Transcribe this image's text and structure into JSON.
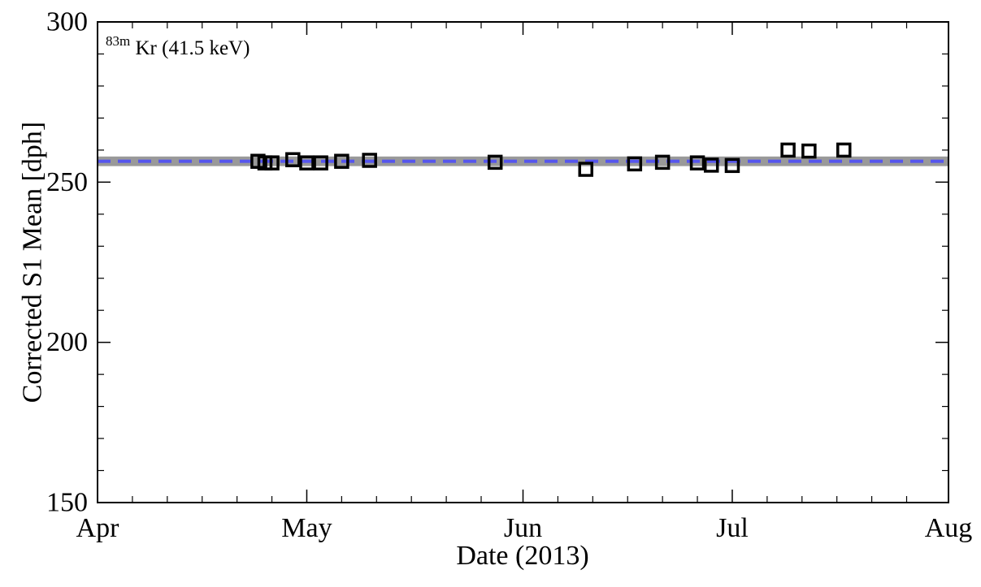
{
  "chart_data": {
    "type": "scatter",
    "title": "",
    "xlabel": "Date (2013)",
    "ylabel": "Corrected S1 Mean [dph]",
    "x_range": [
      "2013-04-01",
      "2013-08-01"
    ],
    "x_ticks": [
      {
        "date": "2013-04-01",
        "label": "Apr"
      },
      {
        "date": "2013-05-01",
        "label": "May"
      },
      {
        "date": "2013-06-01",
        "label": "Jun"
      },
      {
        "date": "2013-07-01",
        "label": "Jul"
      },
      {
        "date": "2013-08-01",
        "label": "Aug"
      }
    ],
    "ylim": [
      150,
      300
    ],
    "y_ticks": [
      150,
      200,
      250,
      300
    ],
    "y_tick_labels": [
      "150",
      "200",
      "250",
      "300"
    ],
    "annotation": {
      "sup": "83m",
      "text": "Kr (41.5 keV)"
    },
    "mean_line": {
      "y": 256.5,
      "band": [
        255.0,
        258.0
      ],
      "line_color": "#5555ee",
      "band_color": "#999999"
    },
    "marker_color": "#000000",
    "points": [
      {
        "x": "2013-04-24",
        "y": 256.5
      },
      {
        "x": "2013-04-25",
        "y": 256.0
      },
      {
        "x": "2013-04-26",
        "y": 256.0
      },
      {
        "x": "2013-04-29",
        "y": 257.0
      },
      {
        "x": "2013-05-01",
        "y": 256.0
      },
      {
        "x": "2013-05-03",
        "y": 256.0
      },
      {
        "x": "2013-05-06",
        "y": 256.5
      },
      {
        "x": "2013-05-10",
        "y": 256.8
      },
      {
        "x": "2013-05-28",
        "y": 256.2
      },
      {
        "x": "2013-06-10",
        "y": 254.0
      },
      {
        "x": "2013-06-17",
        "y": 255.7
      },
      {
        "x": "2013-06-21",
        "y": 256.2
      },
      {
        "x": "2013-06-26",
        "y": 256.0
      },
      {
        "x": "2013-06-28",
        "y": 255.3
      },
      {
        "x": "2013-07-01",
        "y": 255.2
      },
      {
        "x": "2013-07-09",
        "y": 260.0
      },
      {
        "x": "2013-07-12",
        "y": 259.7
      },
      {
        "x": "2013-07-17",
        "y": 260.0
      }
    ]
  }
}
